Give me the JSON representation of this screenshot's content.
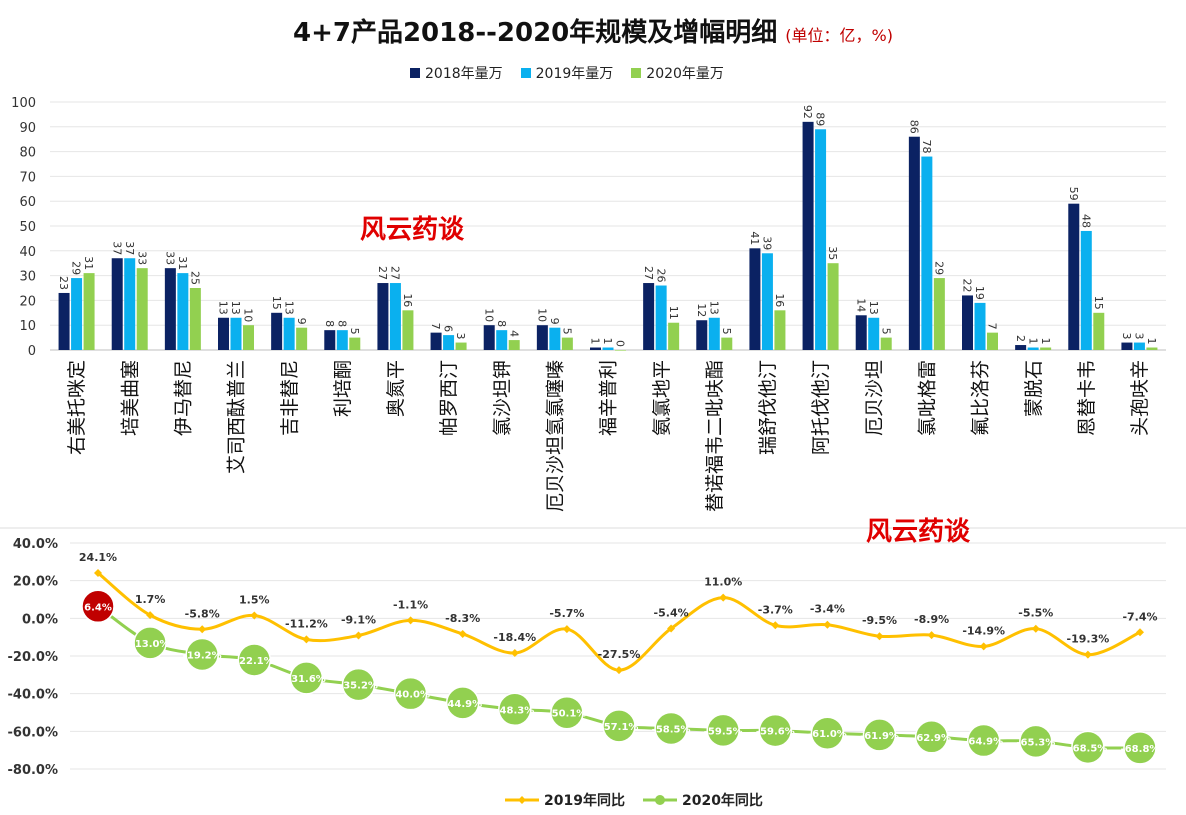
{
  "title": "4+7产品2018--2020年规模及增幅明细",
  "unit": "(单位：亿，%)",
  "watermark": "风云药谈",
  "colors": {
    "s2018": "#0b2263",
    "s2019": "#0ab0ef",
    "s2020": "#92d050",
    "line2019": "#ffc000",
    "line2020": "#92d050",
    "highlight": "#c00000"
  },
  "chart_data": [
    {
      "type": "bar",
      "categories": [
        "右美托咪定",
        "培美曲塞",
        "伊马替尼",
        "艾司西酞普兰",
        "吉非替尼",
        "利培酮",
        "奥氮平",
        "帕罗西汀",
        "氯沙坦钾",
        "厄贝沙坦氢氯噻嗪",
        "福辛普利",
        "氨氯地平",
        "替诺福韦二吡呋酯",
        "瑞舒伐他汀",
        "阿托伐他汀",
        "厄贝沙坦",
        "氯吡格雷",
        "氟比洛芬",
        "蒙脱石",
        "恩替卡韦",
        "头孢呋辛"
      ],
      "series": [
        {
          "name": "2018年量万",
          "values": [
            23,
            37,
            33,
            13,
            15,
            8,
            27,
            7,
            10,
            10,
            1,
            27,
            12,
            41,
            92,
            14,
            86,
            22,
            2,
            59,
            3
          ]
        },
        {
          "name": "2019年量万",
          "values": [
            29,
            37,
            31,
            13,
            13,
            8,
            27,
            6,
            8,
            9,
            1,
            26,
            13,
            39,
            89,
            13,
            78,
            19,
            1,
            48,
            3
          ]
        },
        {
          "name": "2020年量万",
          "values": [
            31,
            33,
            25,
            10,
            9,
            5,
            16,
            3,
            4,
            5,
            0,
            11,
            5,
            16,
            35,
            5,
            29,
            7,
            1,
            15,
            1
          ]
        }
      ],
      "ylim": [
        0,
        100
      ],
      "yticks": [
        0,
        10,
        20,
        30,
        40,
        50,
        60,
        70,
        80,
        90,
        100
      ],
      "legend_position": "top",
      "grid": true
    },
    {
      "type": "line",
      "series": [
        {
          "name": "2019年同比",
          "values": [
            "24.1%",
            "1.7%",
            "-5.8%",
            "1.5%",
            "-11.2%",
            "-9.1%",
            "-1.1%",
            "-8.3%",
            "-18.4%",
            "-5.7%",
            "-27.5%",
            "-5.4%",
            "11.0%",
            "-3.7%",
            "-3.4%",
            "-9.5%",
            "-8.9%",
            "-14.9%",
            "-5.5%",
            "-19.3%",
            "-7.4%"
          ]
        },
        {
          "name": "2020年同比",
          "values": [
            "6.4%",
            "-13.0%",
            "-19.2%",
            "-22.1%",
            "-31.6%",
            "-35.2%",
            "-40.0%",
            "-44.9%",
            "-48.3%",
            "-50.1%",
            "-57.1%",
            "-58.5%",
            "-59.5%",
            "-59.6%",
            "-61.0%",
            "-61.9%",
            "-62.9%",
            "-64.9%",
            "-65.3%",
            "-68.5%",
            "-68.8%"
          ]
        }
      ],
      "ylim": [
        -80,
        40
      ],
      "yticks": [
        "40.0%",
        "20.0%",
        "0.0%",
        "-20.0%",
        "-40.0%",
        "-60.0%",
        "-80.0%"
      ],
      "legend_position": "bottom",
      "grid": true
    }
  ]
}
